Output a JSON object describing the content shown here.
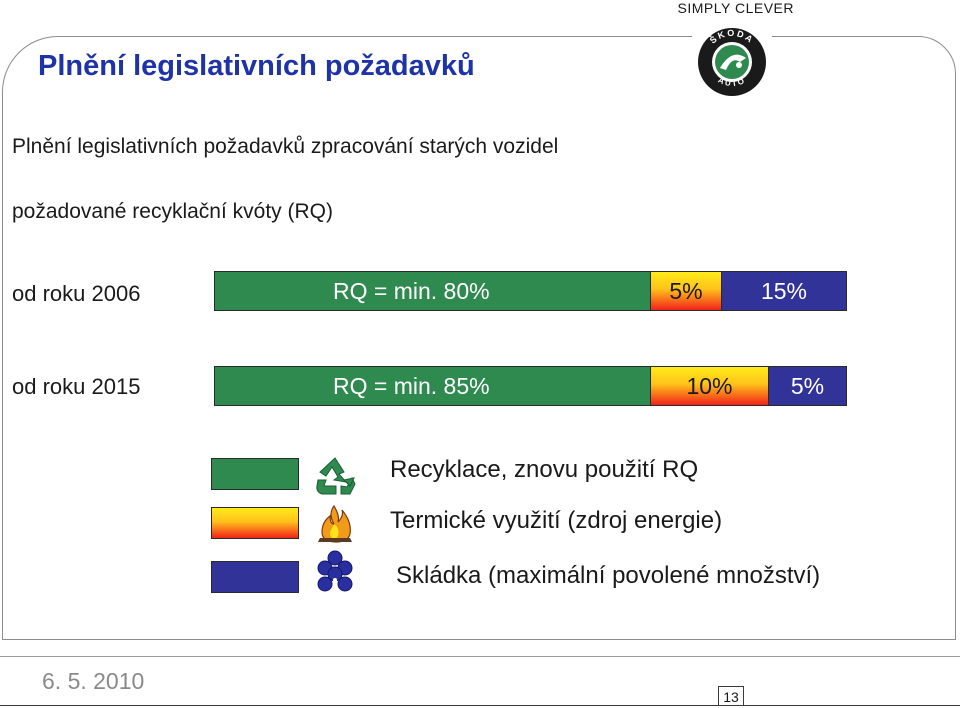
{
  "header": {
    "brand": "SIMPLY CLEVER",
    "logo_text": "ŠKODA AUTO"
  },
  "title": "Plnění legislativních požadavků",
  "subtitle1": "Plnění legislativních požadavků  zpracování starých vozidel",
  "subtitle2": "požadované recyklační kvóty (RQ)",
  "rows": [
    {
      "label": "od roku 2006",
      "green_label": "RQ = min. 80%",
      "yellow_label": "5%",
      "blue_label": "15%",
      "green_pct": 80,
      "yellow_pct": 5,
      "blue_pct": 15
    },
    {
      "label": "od roku 2015",
      "green_label": "RQ = min. 85%",
      "yellow_label": "10%",
      "blue_label": "5%",
      "green_pct": 85,
      "yellow_pct": 10,
      "blue_pct": 5
    }
  ],
  "legend": [
    {
      "text": "Recyklace, znovu použití RQ",
      "color": "#2f8a50",
      "icon": "recycle-icon"
    },
    {
      "text": "Termické využití (zdroj energie)",
      "color": "gradient-yellow-red",
      "icon": "flame-icon"
    },
    {
      "text": "Skládka (maximální povolené množství)",
      "color": "#323399",
      "icon": "landfill-icon"
    }
  ],
  "footer": {
    "date": "6. 5. 2010",
    "page": "13"
  }
}
